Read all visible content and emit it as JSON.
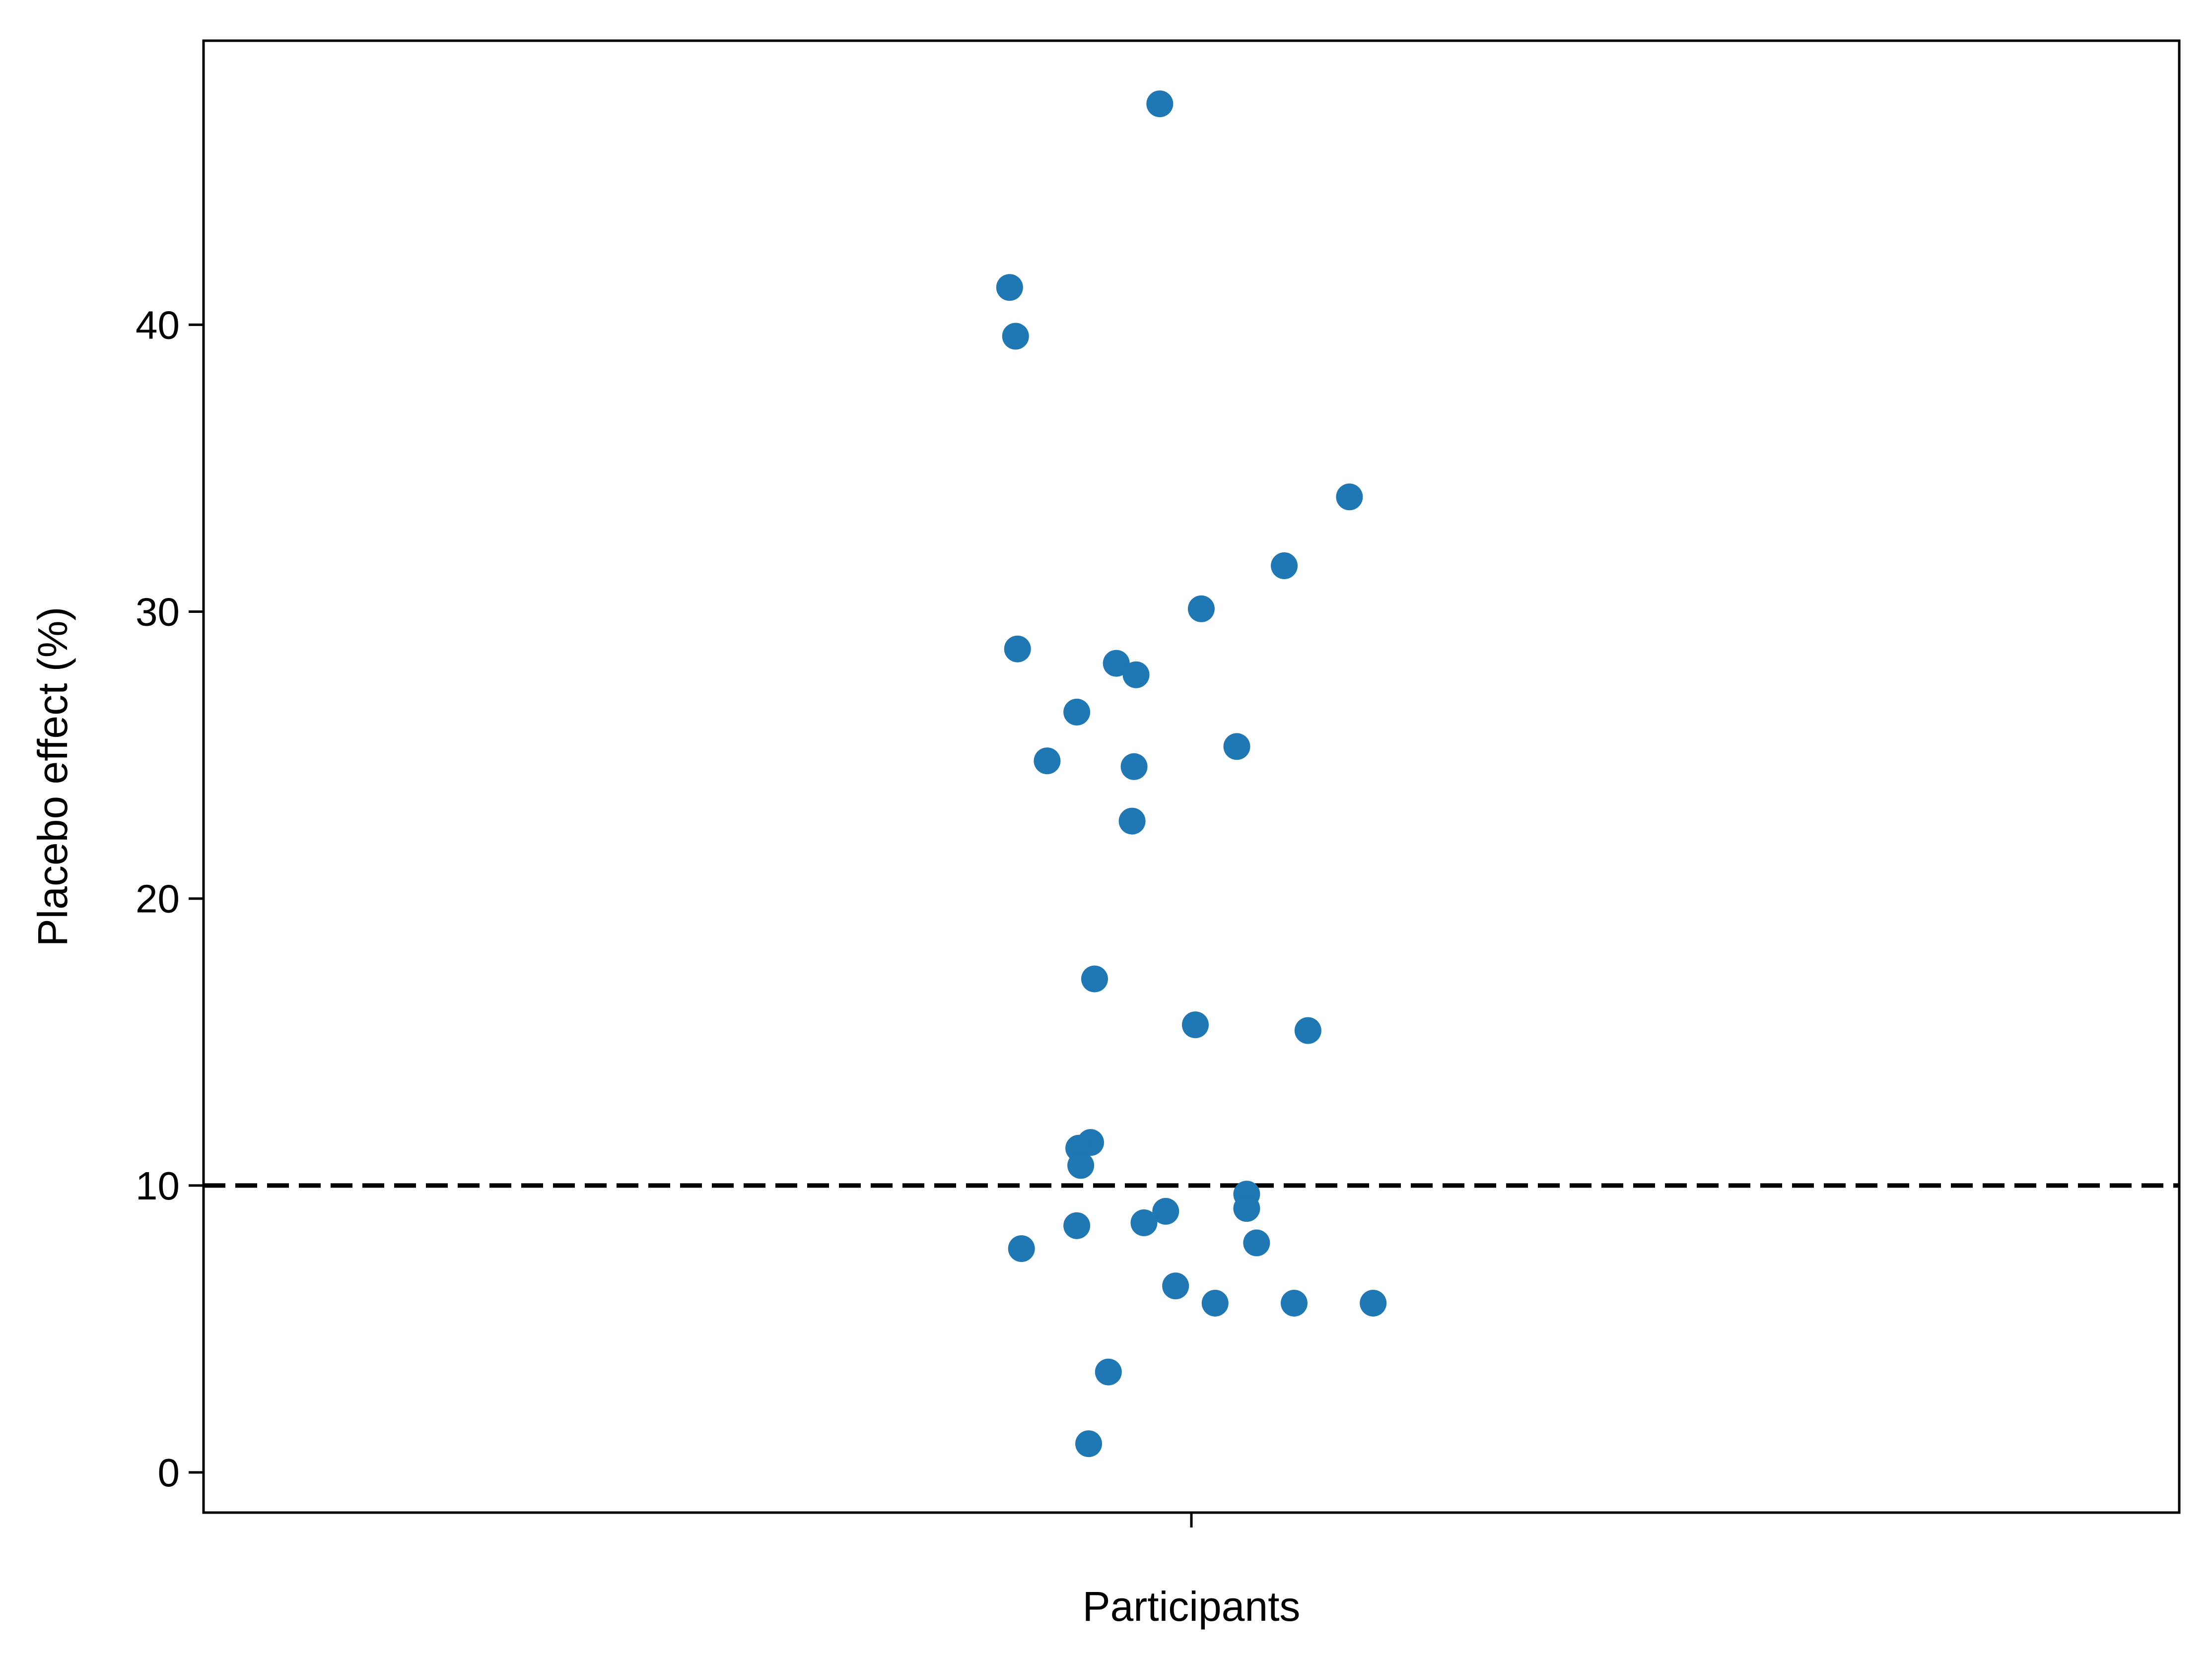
{
  "chart_data": {
    "type": "scatter",
    "title": "",
    "xlabel": "Participants",
    "ylabel": "Placebo effect (%)",
    "x_ticks": [
      ""
    ],
    "ylim": [
      -1.4,
      49.9
    ],
    "xlim": [
      -0.5,
      0.5
    ],
    "yticks": [
      0,
      10,
      20,
      30,
      40
    ],
    "grid": false,
    "point_color": "#1f77b4",
    "reference_line": {
      "y": 10,
      "style": "dashed",
      "color": "#000000"
    },
    "series": [
      {
        "points": [
          {
            "x": -0.016,
            "y": 47.7
          },
          {
            "x": -0.092,
            "y": 41.3
          },
          {
            "x": -0.089,
            "y": 39.6
          },
          {
            "x": 0.08,
            "y": 34.0
          },
          {
            "x": 0.047,
            "y": 31.6
          },
          {
            "x": 0.005,
            "y": 30.1
          },
          {
            "x": -0.088,
            "y": 28.7
          },
          {
            "x": -0.038,
            "y": 28.2
          },
          {
            "x": -0.028,
            "y": 27.8
          },
          {
            "x": -0.058,
            "y": 26.5
          },
          {
            "x": 0.023,
            "y": 25.3
          },
          {
            "x": -0.073,
            "y": 24.8
          },
          {
            "x": -0.029,
            "y": 24.6
          },
          {
            "x": -0.03,
            "y": 22.7
          },
          {
            "x": -0.049,
            "y": 17.2
          },
          {
            "x": 0.002,
            "y": 15.6
          },
          {
            "x": 0.059,
            "y": 15.4
          },
          {
            "x": -0.051,
            "y": 11.5
          },
          {
            "x": -0.057,
            "y": 11.3
          },
          {
            "x": -0.056,
            "y": 10.7
          },
          {
            "x": 0.028,
            "y": 9.7
          },
          {
            "x": 0.028,
            "y": 9.2
          },
          {
            "x": -0.013,
            "y": 9.1
          },
          {
            "x": -0.024,
            "y": 8.7
          },
          {
            "x": -0.058,
            "y": 8.6
          },
          {
            "x": 0.033,
            "y": 8.0
          },
          {
            "x": -0.086,
            "y": 7.8
          },
          {
            "x": -0.008,
            "y": 6.5
          },
          {
            "x": 0.012,
            "y": 5.9
          },
          {
            "x": 0.052,
            "y": 5.9
          },
          {
            "x": 0.092,
            "y": 5.9
          },
          {
            "x": -0.042,
            "y": 3.5
          },
          {
            "x": -0.052,
            "y": 1.0
          }
        ]
      }
    ]
  }
}
